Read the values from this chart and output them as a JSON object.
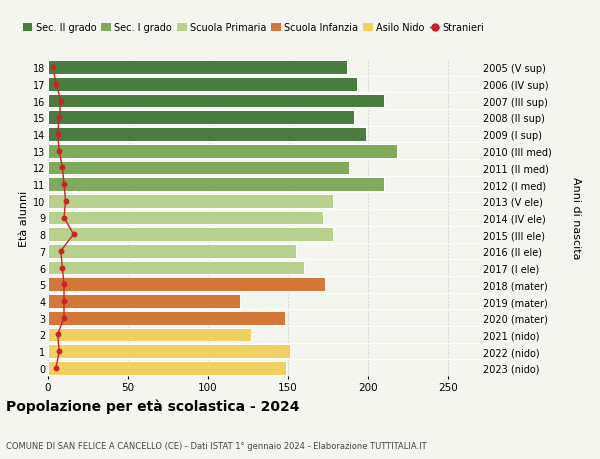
{
  "ages": [
    18,
    17,
    16,
    15,
    14,
    13,
    12,
    11,
    10,
    9,
    8,
    7,
    6,
    5,
    4,
    3,
    2,
    1,
    0
  ],
  "values": [
    187,
    193,
    210,
    191,
    199,
    218,
    188,
    210,
    178,
    172,
    178,
    155,
    160,
    173,
    120,
    148,
    127,
    151,
    149
  ],
  "stranieri": [
    3,
    5,
    8,
    7,
    6,
    7,
    9,
    10,
    11,
    10,
    16,
    8,
    9,
    10,
    10,
    10,
    6,
    7,
    5
  ],
  "right_labels": [
    "2005 (V sup)",
    "2006 (IV sup)",
    "2007 (III sup)",
    "2008 (II sup)",
    "2009 (I sup)",
    "2010 (III med)",
    "2011 (II med)",
    "2012 (I med)",
    "2013 (V ele)",
    "2014 (IV ele)",
    "2015 (III ele)",
    "2016 (II ele)",
    "2017 (I ele)",
    "2018 (mater)",
    "2019 (mater)",
    "2020 (mater)",
    "2021 (nido)",
    "2022 (nido)",
    "2023 (nido)"
  ],
  "bar_colors_by_age": {
    "18": "#4a7c3f",
    "17": "#4a7c3f",
    "16": "#4a7c3f",
    "15": "#4a7c3f",
    "14": "#4a7c3f",
    "13": "#7faa5c",
    "12": "#7faa5c",
    "11": "#7faa5c",
    "10": "#b8d08d",
    "9": "#b8d08d",
    "8": "#b8d08d",
    "7": "#b8d08d",
    "6": "#b8d08d",
    "5": "#d4783a",
    "4": "#d4783a",
    "3": "#d4783a",
    "2": "#f0d060",
    "1": "#f0d060",
    "0": "#f0d060"
  },
  "legend_labels": [
    "Sec. II grado",
    "Sec. I grado",
    "Scuola Primaria",
    "Scuola Infanzia",
    "Asilo Nido",
    "Stranieri"
  ],
  "legend_colors": [
    "#4a7c3f",
    "#7faa5c",
    "#b8d08d",
    "#d4783a",
    "#f0d060",
    "#cc2222"
  ],
  "title": "Popolazione per età scolastica - 2024",
  "subtitle": "COMUNE DI SAN FELICE A CANCELLO (CE) - Dati ISTAT 1° gennaio 2024 - Elaborazione TUTTITALIA.IT",
  "ylabel_left": "Età alunni",
  "ylabel_right": "Anni di nascita",
  "stranieri_color": "#cc2222",
  "bg_color": "#f5f5f0",
  "xlim": [
    0,
    270
  ],
  "xticks": [
    0,
    50,
    100,
    150,
    200,
    250
  ]
}
